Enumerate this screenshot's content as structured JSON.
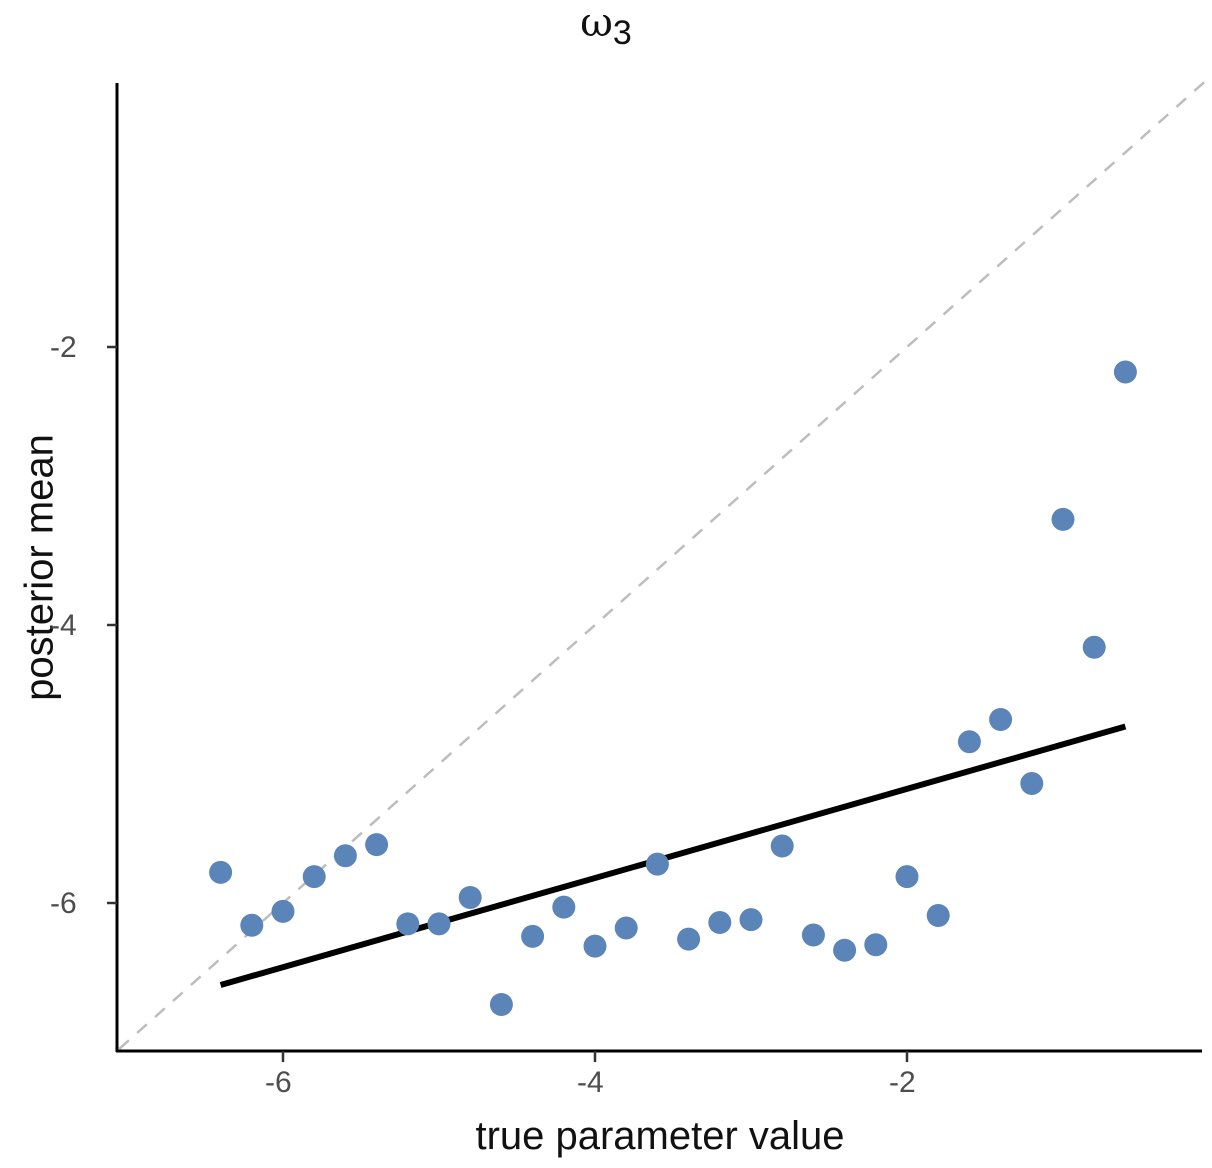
{
  "chart_data": {
    "type": "scatter",
    "title": "ω3",
    "title_symbol": "ω",
    "title_subscript": "3",
    "xlabel": "true parameter value",
    "ylabel": "posterior mean",
    "xlim": [
      -7.05,
      -0.5
    ],
    "ylim": [
      -7.0,
      -0.2
    ],
    "x_ticks": [
      -6,
      -4,
      -2
    ],
    "y_ticks": [
      -2,
      -4,
      -6
    ],
    "x_tick_labels": [
      "-6",
      "-4",
      "-2"
    ],
    "y_tick_labels": [
      "-2",
      "-4",
      "-6"
    ],
    "grid": false,
    "legend": null,
    "point_color": "#5b84b8",
    "series": [
      {
        "name": "posterior means",
        "x": [
          -6.4,
          -6.2,
          -6.0,
          -5.8,
          -5.6,
          -5.4,
          -5.2,
          -5.0,
          -4.8,
          -4.6,
          -4.4,
          -4.2,
          -4.0,
          -3.8,
          -3.6,
          -3.4,
          -3.2,
          -3.0,
          -2.8,
          -2.6,
          -2.4,
          -2.2,
          -2.0,
          -1.8,
          -1.6,
          -1.4,
          -1.2,
          -1.0,
          -0.8,
          -0.6
        ],
        "y": [
          -5.78,
          -6.16,
          -6.06,
          -5.81,
          -5.66,
          -5.58,
          -6.15,
          -6.15,
          -5.96,
          -6.73,
          -6.24,
          -6.03,
          -6.31,
          -6.18,
          -5.72,
          -6.26,
          -6.14,
          -6.12,
          -5.59,
          -6.23,
          -6.34,
          -6.3,
          -5.81,
          -6.09,
          -4.84,
          -4.68,
          -5.14,
          -3.24,
          -4.16,
          -2.18
        ]
      }
    ],
    "reference_line": {
      "type": "identity",
      "style": "dashed",
      "color": "#bdbdbd"
    },
    "fit_line": {
      "x": [
        -6.4,
        -0.6
      ],
      "y": [
        -6.59,
        -4.73
      ],
      "color": "#000000"
    }
  }
}
